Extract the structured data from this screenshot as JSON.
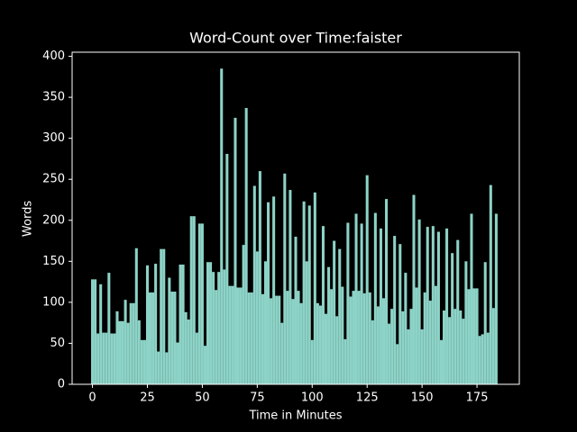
{
  "chart_data": {
    "type": "bar",
    "title": "Word-Count over Time:faister",
    "x_label": "Time in Minutes",
    "y_label": "Words",
    "color": "#8dd3c7",
    "x": [
      0,
      1.25,
      2.5,
      3.75,
      5,
      6.25,
      7.5,
      8.75,
      10,
      11.25,
      12.5,
      13.75,
      15,
      16.25,
      17.5,
      18.75,
      20,
      21.25,
      22.5,
      23.75,
      25,
      26.25,
      27.5,
      28.75,
      30,
      31.25,
      32.5,
      33.75,
      35,
      36.25,
      37.5,
      38.75,
      40,
      41.25,
      42.5,
      43.75,
      45,
      46.25,
      47.5,
      48.75,
      50,
      51.25,
      52.5,
      53.75,
      55,
      56.25,
      57.5,
      58.75,
      60,
      61.25,
      62.5,
      63.75,
      65,
      66.25,
      67.5,
      68.75,
      70,
      71.25,
      72.5,
      73.75,
      75,
      76.25,
      77.5,
      78.75,
      80,
      81.25,
      82.5,
      83.75,
      85,
      86.25,
      87.5,
      88.75,
      90,
      91.25,
      92.5,
      93.75,
      95,
      96.25,
      97.5,
      98.75,
      100,
      101.25,
      102.5,
      103.75,
      105,
      106.25,
      107.5,
      108.75,
      110,
      111.25,
      112.5,
      113.75,
      115,
      116.25,
      117.5,
      118.75,
      120,
      121.25,
      122.5,
      123.75,
      125,
      126.25,
      127.5,
      128.75,
      130,
      131.25,
      132.5,
      133.75,
      135,
      136.25,
      137.5,
      138.75,
      140,
      141.25,
      142.5,
      143.75,
      145,
      146.25,
      147.5,
      148.75,
      150,
      151.25,
      152.5,
      153.75,
      155,
      156.25,
      157.5,
      158.75,
      160,
      161.25,
      162.5,
      163.75,
      165,
      166.25,
      167.5,
      168.75,
      170,
      171.25,
      172.5,
      173.75,
      175,
      176.25,
      177.5,
      178.75,
      180,
      181.25,
      182.5,
      183.75
    ],
    "values": [
      128,
      128,
      62,
      122,
      63,
      63,
      136,
      62,
      62,
      89,
      77,
      77,
      103,
      75,
      99,
      99,
      166,
      78,
      54,
      54,
      145,
      112,
      112,
      147,
      40,
      165,
      165,
      39,
      130,
      113,
      113,
      51,
      146,
      146,
      88,
      79,
      205,
      205,
      63,
      196,
      196,
      47,
      149,
      149,
      137,
      115,
      137,
      385,
      140,
      281,
      120,
      120,
      325,
      118,
      118,
      170,
      337,
      112,
      112,
      242,
      162,
      260,
      110,
      150,
      222,
      105,
      229,
      108,
      108,
      75,
      257,
      114,
      237,
      104,
      180,
      114,
      99,
      223,
      150,
      218,
      54,
      234,
      99,
      96,
      193,
      86,
      143,
      116,
      175,
      83,
      165,
      119,
      55,
      197,
      107,
      114,
      208,
      114,
      196,
      111,
      255,
      112,
      78,
      209,
      95,
      190,
      105,
      226,
      74,
      92,
      181,
      49,
      171,
      89,
      136,
      67,
      92,
      231,
      118,
      201,
      67,
      112,
      192,
      102,
      193,
      120,
      186,
      54,
      90,
      190,
      82,
      160,
      92,
      176,
      90,
      80,
      150,
      116,
      208,
      117,
      117,
      59,
      61,
      149,
      63,
      243,
      93,
      208
    ],
    "xlim": [
      -9.25,
      194.25
    ],
    "xticks": [
      0,
      25,
      50,
      75,
      100,
      125,
      150,
      175
    ],
    "ylim": [
      0,
      405
    ],
    "yticks": [
      0,
      50,
      100,
      150,
      200,
      250,
      300,
      350,
      400
    ]
  }
}
